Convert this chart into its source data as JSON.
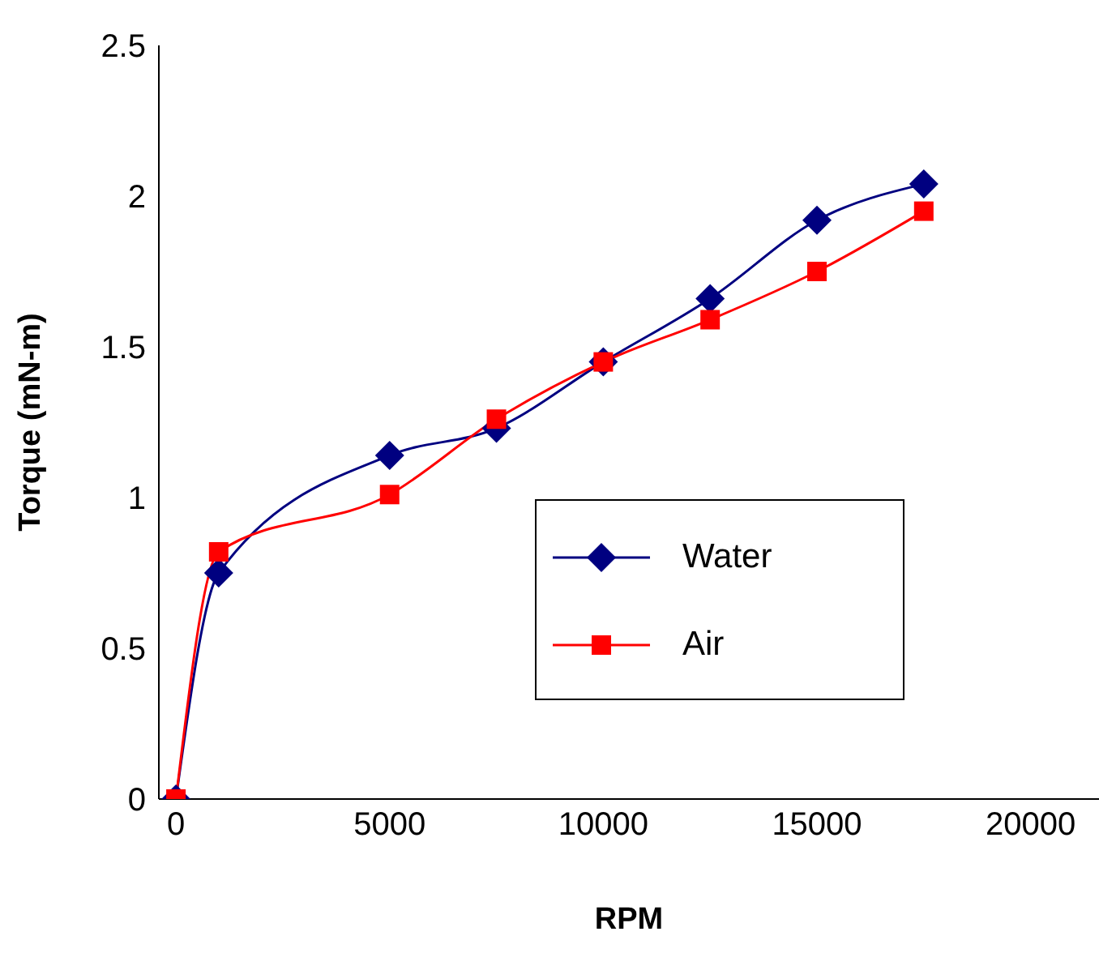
{
  "chart_data": {
    "type": "line",
    "xlabel": "RPM",
    "ylabel": "Torque (mN-m)",
    "x": [
      0,
      1000,
      5000,
      7500,
      10000,
      12500,
      15000,
      17500
    ],
    "series": [
      {
        "name": "Water",
        "color": "#000080",
        "marker": "diamond",
        "values": [
          0,
          0.75,
          1.14,
          1.23,
          1.45,
          1.66,
          1.92,
          2.04
        ]
      },
      {
        "name": "Air",
        "color": "#ff0000",
        "marker": "square",
        "values": [
          0,
          0.82,
          1.01,
          1.26,
          1.45,
          1.59,
          1.75,
          1.95
        ]
      }
    ],
    "xlim": [
      -400,
      21600
    ],
    "xticks": [
      0,
      5000,
      10000,
      15000,
      20000
    ],
    "ylim": [
      0,
      2.5
    ],
    "yticks": [
      0,
      0.5,
      1,
      1.5,
      2,
      2.5
    ],
    "grid": false,
    "legend": "right"
  }
}
